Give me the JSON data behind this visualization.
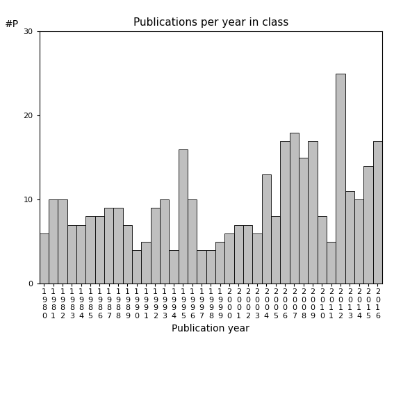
{
  "title": "Publications per year in class",
  "xlabel": "Publication year",
  "ylabel": "#P",
  "years": [
    1980,
    1981,
    1982,
    1983,
    1984,
    1985,
    1986,
    1987,
    1988,
    1989,
    1990,
    1991,
    1992,
    1993,
    1994,
    1995,
    1996,
    1997,
    1998,
    1999,
    2000,
    2001,
    2002,
    2003,
    2004,
    2005,
    2006,
    2007,
    2008,
    2009,
    2010,
    2011,
    2012,
    2013,
    2014,
    2015,
    2016
  ],
  "values": [
    6,
    10,
    10,
    7,
    7,
    8,
    8,
    9,
    9,
    7,
    4,
    5,
    9,
    10,
    4,
    16,
    10,
    4,
    4,
    5,
    6,
    7,
    7,
    6,
    13,
    8,
    17,
    18,
    15,
    17,
    8,
    5,
    25,
    11,
    10,
    14,
    17
  ],
  "bar_color": "#bfbfbf",
  "bar_edgecolor": "#000000",
  "ylim": [
    0,
    30
  ],
  "yticks": [
    0,
    10,
    20,
    30
  ],
  "background_color": "#ffffff",
  "title_fontsize": 11,
  "label_fontsize": 10,
  "tick_fontsize": 8
}
